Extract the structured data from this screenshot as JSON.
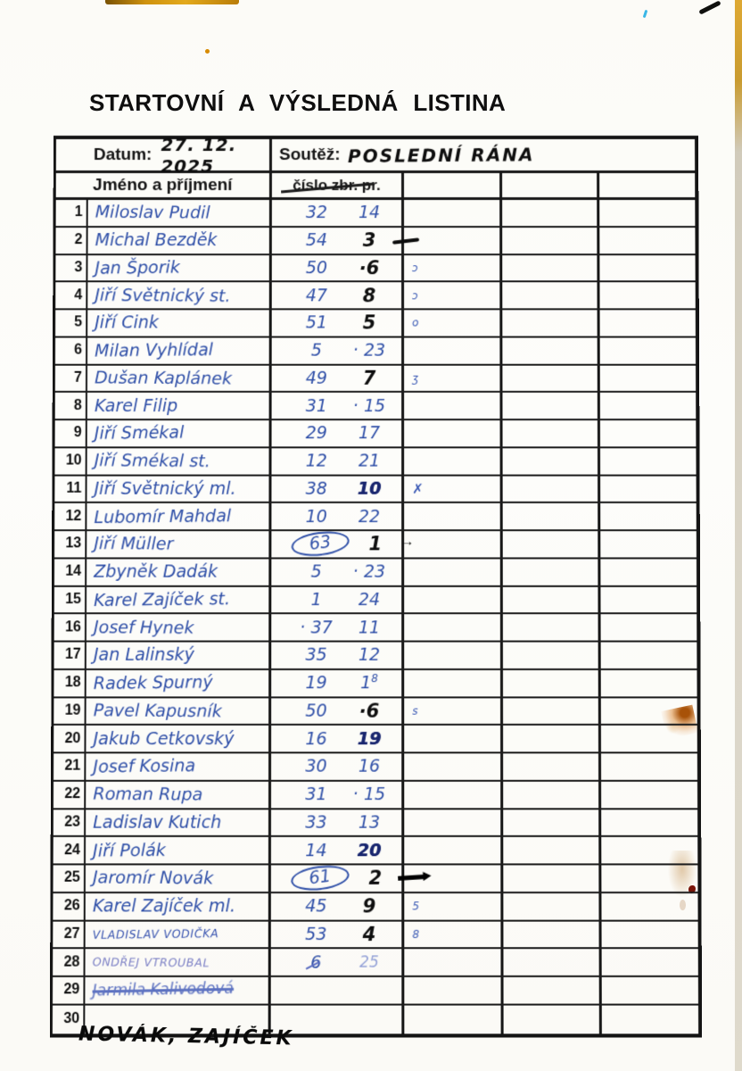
{
  "page": {
    "title": "STARTOVNÍ A VÝSLEDNÁ LISTINA",
    "footer_note": "NOVÁK, ZAJÍČEK"
  },
  "form": {
    "date_label": "Datum:",
    "date_value": "27. 12. 2025",
    "competition_label": "Soutěž:",
    "competition_value": "POSLEDNÍ RÁNA",
    "name_header": "Jméno a příjmení",
    "number_header": "číslo zbr. pr.",
    "number_header_struck_part": "zbr."
  },
  "colors": {
    "ink_blue": "#3050a8",
    "ink_blue_bold": "#18256e",
    "ink_black": "#0e0e0e",
    "printed_black": "#141414",
    "stain_orange": "#a85208",
    "stain_red": "#7a1408",
    "scan_edge_orange": "#cf920e"
  },
  "table": {
    "rows": [
      {
        "num": "1",
        "name": "Miloslav Pudil",
        "v1": "32",
        "v2": "14",
        "v2s": "blue"
      },
      {
        "num": "2",
        "name": "Michal Bezděk",
        "v1": "54",
        "v2": "3",
        "v2s": "black",
        "suffix": "dash"
      },
      {
        "num": "3",
        "name": "Jan Šporik",
        "v1": "50",
        "v2": "·6",
        "v2s": "black",
        "mark": "ɔ"
      },
      {
        "num": "4",
        "name": "Jiří Světnický st.",
        "v1": "47",
        "v2": "8",
        "v2s": "black",
        "mark": "ɔ"
      },
      {
        "num": "5",
        "name": "Jiří Cink",
        "v1": "51",
        "v2": "5",
        "v2s": "black",
        "mark": "o"
      },
      {
        "num": "6",
        "name": "Milan Vyhlídal",
        "v1": "5",
        "v2": "· 23",
        "v2s": "blue"
      },
      {
        "num": "7",
        "name": "Dušan Kaplánek",
        "v1": "49",
        "v2": "7",
        "v2s": "black",
        "mark": "ʒ"
      },
      {
        "num": "8",
        "name": "Karel Filip",
        "v1": "31",
        "v2": "· 15",
        "v2s": "blue"
      },
      {
        "num": "9",
        "name": "Jiří Smékal",
        "v1": "29",
        "v2": "17",
        "v2s": "blue"
      },
      {
        "num": "10",
        "name": "Jiří Smékal st.",
        "v1": "12",
        "v2": "21",
        "v2s": "blue"
      },
      {
        "num": "11",
        "name": "Jiří Světnický ml.",
        "v1": "38",
        "v2": "10",
        "v2s": "boldblue",
        "mark": "✗",
        "markBig": true
      },
      {
        "num": "12",
        "name": "Lubomír Mahdal",
        "v1": "10",
        "v2": "22",
        "v2s": "blue"
      },
      {
        "num": "13",
        "name": "Jiří Müller",
        "v1": "63",
        "v1Circled": true,
        "v2": "1",
        "v2s": "black",
        "suffix": "arrow"
      },
      {
        "num": "14",
        "name": "Zbyněk Dadák",
        "v1": "5",
        "v2": "· 23",
        "v2s": "blue"
      },
      {
        "num": "15",
        "name": "Karel Zajíček st.",
        "v1": "1",
        "v2": "24",
        "v2s": "blue"
      },
      {
        "num": "16",
        "name": "Josef Hynek",
        "v1": "· 37",
        "v2": "11",
        "v2s": "blue"
      },
      {
        "num": "17",
        "name": "Jan Lalinský",
        "v1": "35",
        "v2": "12",
        "v2s": "blue"
      },
      {
        "num": "18",
        "name": "Radek Spurný",
        "v1": "19",
        "v2": "1",
        "v2sup": "8",
        "v2s": "blue"
      },
      {
        "num": "19",
        "name": "Pavel Kapusník",
        "v1": "50",
        "v2": "·6",
        "v2s": "black",
        "mark": "s"
      },
      {
        "num": "20",
        "name": "Jakub Cetkovský",
        "v1": "16",
        "v2": "19",
        "v2s": "boldblue"
      },
      {
        "num": "21",
        "name": "Josef Kosina",
        "v1": "30",
        "v2": "16",
        "v2s": "blue"
      },
      {
        "num": "22",
        "name": "Roman Rupa",
        "v1": "31",
        "v2": "· 15",
        "v2s": "blue"
      },
      {
        "num": "23",
        "name": "Ladislav Kutich",
        "v1": "33",
        "v2": "13",
        "v2s": "blue"
      },
      {
        "num": "24",
        "name": "Jiří Polák",
        "v1": "14",
        "v2": "20",
        "v2s": "boldblue"
      },
      {
        "num": "25",
        "name": "Jaromír Novák",
        "v1": "61",
        "v1Circled": true,
        "v2": "2",
        "v2s": "black",
        "suffix": "bolddash"
      },
      {
        "num": "26",
        "name": "Karel Zajíček ml.",
        "v1": "45",
        "v2": "9",
        "v2s": "black",
        "mark": "5"
      },
      {
        "num": "27",
        "name": "Vladislav Vodička",
        "nameStyle": "caps",
        "v1": "53",
        "v2": "4",
        "v2s": "black",
        "mark": "8"
      },
      {
        "num": "28",
        "name": "Ondřej Vtroubal",
        "nameStyle": "capsfaint",
        "v1": "6",
        "v1Struck": true,
        "v2": "25",
        "v2s": "faint"
      },
      {
        "num": "29",
        "name": "Jarmila Kalivodová",
        "nameStyle": "struck"
      },
      {
        "num": "30",
        "name": ""
      }
    ]
  }
}
